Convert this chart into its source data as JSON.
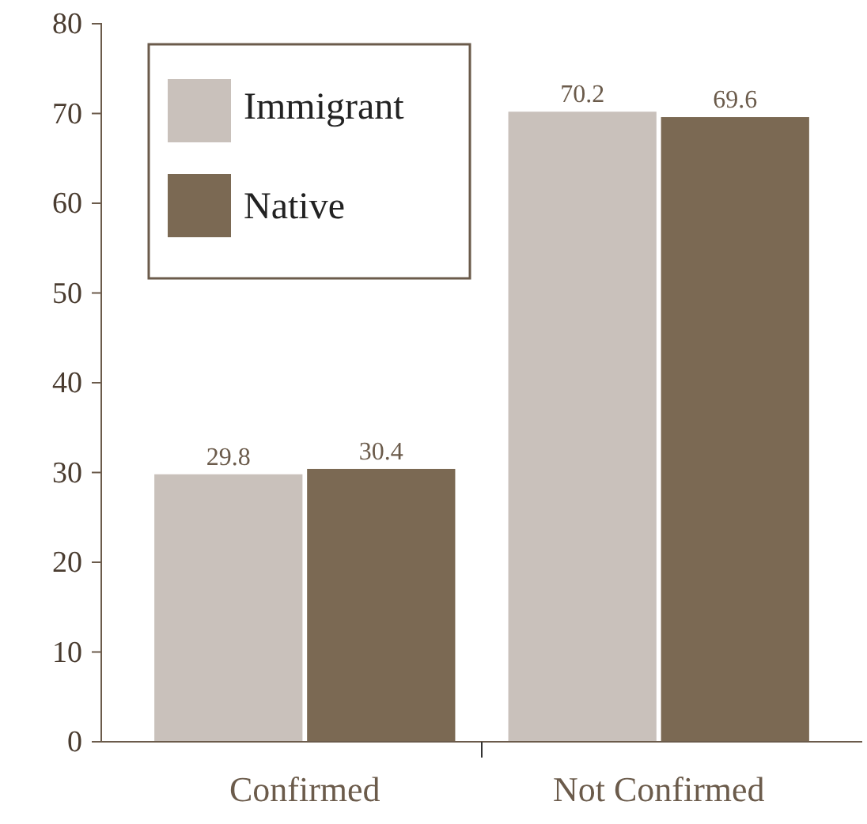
{
  "chart_data": {
    "type": "bar",
    "categories": [
      "Confirmed",
      "Not Confirmed"
    ],
    "series": [
      {
        "name": "Immigrant",
        "color": "#c9c1bb",
        "values": [
          29.8,
          70.2
        ]
      },
      {
        "name": "Native",
        "color": "#7b6953",
        "values": [
          30.4,
          69.6
        ]
      }
    ],
    "ylim": [
      0,
      80
    ],
    "yticks": [
      0,
      10,
      20,
      30,
      40,
      50,
      60,
      70,
      80
    ],
    "data_labels": true,
    "legend": "top left",
    "grid": false
  }
}
